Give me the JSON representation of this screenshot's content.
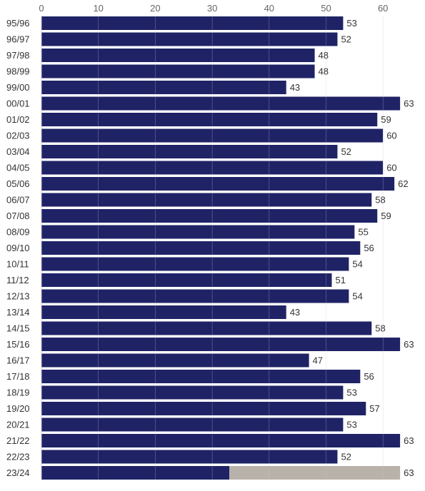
{
  "chart_data": {
    "type": "bar",
    "orientation": "horizontal",
    "categories": [
      "95/96",
      "96/97",
      "97/98",
      "98/99",
      "99/00",
      "00/01",
      "01/02",
      "02/03",
      "03/04",
      "04/05",
      "05/06",
      "06/07",
      "07/08",
      "08/09",
      "09/10",
      "10/11",
      "11/12",
      "12/13",
      "13/14",
      "14/15",
      "15/16",
      "16/17",
      "17/18",
      "18/19",
      "19/20",
      "20/21",
      "21/22",
      "22/23",
      "23/24"
    ],
    "values": [
      53,
      52,
      48,
      48,
      43,
      63,
      59,
      60,
      52,
      60,
      62,
      58,
      59,
      55,
      56,
      54,
      51,
      54,
      43,
      58,
      63,
      47,
      56,
      53,
      57,
      53,
      63,
      52,
      63
    ],
    "partial_last": {
      "category": "23/24",
      "filled": 33,
      "total": 63
    },
    "x_ticks": [
      0,
      10,
      20,
      30,
      40,
      50,
      60
    ],
    "xlim": [
      0,
      63
    ],
    "title": "",
    "xlabel": "",
    "ylabel": "",
    "grid": true,
    "legend": "none",
    "colors": {
      "bar": "#1f2366",
      "remainder": "#b9b2aa",
      "grid": "#c8c8d8"
    }
  }
}
